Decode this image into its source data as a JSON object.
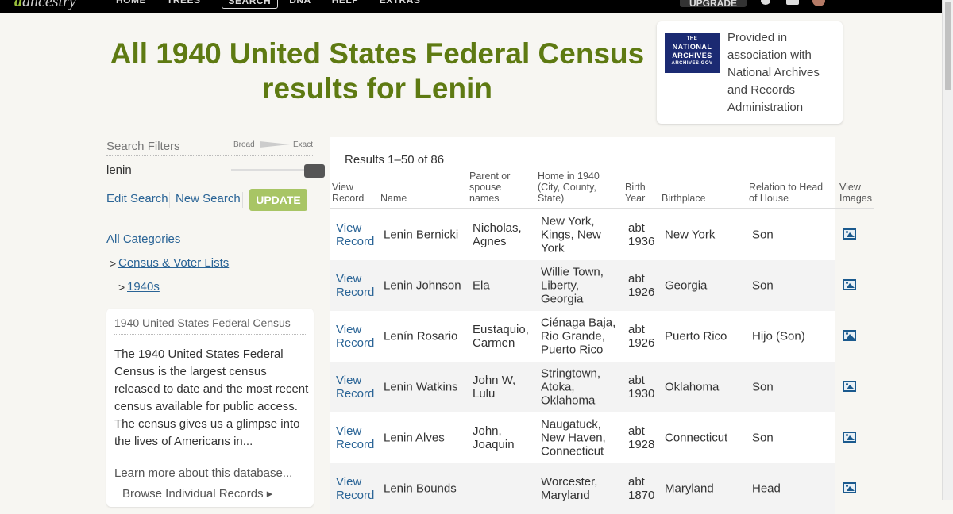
{
  "topbar": {
    "logo": "ancestry",
    "nav": [
      "HOME",
      "TREES",
      "SEARCH",
      "DNA",
      "HELP",
      "EXTRAS"
    ],
    "active": "SEARCH",
    "upgrade": "UPGRADE"
  },
  "title": "All 1940 United States Federal Census results for Lenin",
  "nara": {
    "logo_lines": [
      "THE",
      "NATIONAL",
      "ARCHIVES",
      "ARCHIVES.GOV"
    ],
    "text": "Provided in association with National Archives and Records Administration"
  },
  "filters": {
    "title": "Search Filters",
    "broad": "Broad",
    "exact": "Exact",
    "term": "lenin",
    "edit": "Edit Search",
    "new": "New Search",
    "update": "UPDATE",
    "exactness": 1.0
  },
  "categories": {
    "all": "All Categories",
    "census": "Census & Voter Lists",
    "decade": "1940s",
    "gt": ">"
  },
  "info": {
    "title": "1940 United States Federal Census",
    "desc": "The 1940 United States Federal Census is the largest census released to date and the most recent census available for public access. The census gives us a glimpse into the lives of Americans in...",
    "learn": "Learn more about this database...",
    "browse": "Browse Individual Records ▸"
  },
  "results": {
    "count": "Results 1–50 of 86",
    "headers": [
      "View Record",
      "Name",
      "Parent or spouse names",
      "Home in 1940 (City, County, State)",
      "Birth Year",
      "Birthplace",
      "Relation to Head of House",
      "View Images"
    ],
    "rows": [
      {
        "view": "View Record",
        "name": "Lenin Bernicki",
        "parents": "Nicholas, Agnes",
        "home": "New York, Kings, New York",
        "birth": "abt 1936",
        "place": "New York",
        "rel": "Son"
      },
      {
        "view": "View Record",
        "name": "Lenin Johnson",
        "parents": "Ela",
        "home": "Willie Town, Liberty, Georgia",
        "birth": "abt 1926",
        "place": "Georgia",
        "rel": "Son"
      },
      {
        "view": "View Record",
        "name": "Lenín Rosario",
        "parents": "Eustaquio, Carmen",
        "home": "Ciénaga Baja, Rio Grande, Puerto Rico",
        "birth": "abt 1926",
        "place": "Puerto Rico",
        "rel": "Hijo (Son)"
      },
      {
        "view": "View Record",
        "name": "Lenin Watkins",
        "parents": "John W, Lulu",
        "home": "Stringtown, Atoka, Oklahoma",
        "birth": "abt 1930",
        "place": "Oklahoma",
        "rel": "Son"
      },
      {
        "view": "View Record",
        "name": "Lenin Alves",
        "parents": "John, Joaquin",
        "home": "Naugatuck, New Haven, Connecticut",
        "birth": "abt 1928",
        "place": "Connecticut",
        "rel": "Son"
      },
      {
        "view": "View Record",
        "name": "Lenin Bounds",
        "parents": "",
        "home": "Worcester, Maryland",
        "birth": "abt 1870",
        "place": "Maryland",
        "rel": "Head"
      }
    ]
  }
}
